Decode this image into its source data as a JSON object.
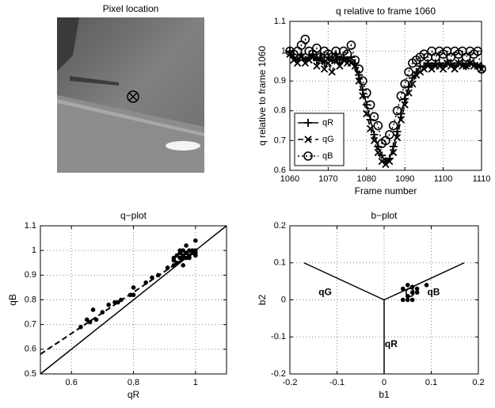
{
  "chart_data": [
    {
      "type": "image",
      "title": "Pixel location"
    },
    {
      "type": "line",
      "title": "q relative to frame 1060",
      "xlabel": "Frame number",
      "ylabel": "q relative to frame 1060",
      "x": [
        1060,
        1061,
        1062,
        1063,
        1064,
        1065,
        1066,
        1067,
        1068,
        1069,
        1070,
        1071,
        1072,
        1073,
        1074,
        1075,
        1076,
        1077,
        1078,
        1079,
        1080,
        1081,
        1082,
        1083,
        1084,
        1085,
        1086,
        1087,
        1088,
        1089,
        1090,
        1091,
        1092,
        1093,
        1094,
        1095,
        1096,
        1097,
        1098,
        1099,
        1100,
        1101,
        1102,
        1103,
        1104,
        1105,
        1106,
        1107,
        1108,
        1109,
        1110
      ],
      "series": [
        {
          "name": "qR",
          "color": "#000000",
          "marker": "+",
          "linestyle": "solid",
          "values": [
            1.0,
            0.98,
            0.97,
            0.99,
            0.97,
            0.98,
            0.99,
            0.97,
            0.98,
            0.96,
            0.98,
            0.97,
            0.99,
            0.97,
            0.98,
            0.97,
            0.98,
            0.96,
            0.92,
            0.87,
            0.82,
            0.77,
            0.72,
            0.68,
            0.65,
            0.63,
            0.64,
            0.68,
            0.73,
            0.79,
            0.84,
            0.88,
            0.91,
            0.93,
            0.95,
            0.95,
            0.96,
            0.95,
            0.96,
            0.96,
            0.95,
            0.96,
            0.96,
            0.95,
            0.96,
            0.96,
            0.95,
            0.96,
            0.96,
            0.95,
            0.95
          ]
        },
        {
          "name": "qG",
          "color": "#000000",
          "marker": "x",
          "linestyle": "dashed",
          "values": [
            0.99,
            0.97,
            0.96,
            0.98,
            0.96,
            0.97,
            0.98,
            0.95,
            0.97,
            0.94,
            0.96,
            0.93,
            0.97,
            0.95,
            0.97,
            0.96,
            0.96,
            0.95,
            0.9,
            0.85,
            0.79,
            0.74,
            0.7,
            0.66,
            0.63,
            0.62,
            0.63,
            0.66,
            0.71,
            0.77,
            0.82,
            0.86,
            0.89,
            0.92,
            0.93,
            0.94,
            0.95,
            0.94,
            0.95,
            0.95,
            0.94,
            0.96,
            0.95,
            0.94,
            0.96,
            0.95,
            0.95,
            0.96,
            0.95,
            0.95,
            0.94
          ]
        },
        {
          "name": "qB",
          "color": "#000000",
          "marker": "o",
          "linestyle": "dotted",
          "values": [
            1.0,
            0.99,
            1.0,
            1.02,
            1.04,
            1.0,
            0.99,
            1.01,
            0.98,
            1.0,
            0.99,
            0.98,
            1.0,
            0.97,
            1.0,
            0.99,
            1.02,
            0.97,
            0.94,
            0.9,
            0.86,
            0.82,
            0.78,
            0.75,
            0.69,
            0.7,
            0.72,
            0.75,
            0.8,
            0.85,
            0.89,
            0.93,
            0.96,
            0.97,
            0.98,
            0.99,
            0.98,
            1.0,
            0.98,
            1.0,
            0.99,
            1.0,
            0.98,
            1.0,
            0.99,
            1.0,
            0.98,
            1.0,
            0.99,
            1.0,
            0.94
          ]
        }
      ],
      "xlim": [
        1060,
        1110
      ],
      "xticks": [
        1060,
        1070,
        1080,
        1090,
        1100,
        1110
      ],
      "ylim": [
        0.6,
        1.1
      ],
      "yticks": [
        0.6,
        0.7,
        0.8,
        0.9,
        1,
        1.1
      ],
      "grid": true,
      "legend": "lower left"
    },
    {
      "type": "scatter",
      "title": "q−plot",
      "xlabel": "qR",
      "ylabel": "qB",
      "series": [
        {
          "color": "#000000",
          "marker": "dot",
          "x": [
            0.63,
            0.65,
            0.66,
            0.67,
            0.68,
            0.7,
            0.72,
            0.74,
            0.75,
            0.76,
            0.79,
            0.8,
            0.8,
            0.84,
            0.86,
            0.88,
            0.91,
            0.93,
            0.93,
            0.94,
            0.94,
            0.95,
            0.95,
            0.95,
            0.96,
            0.96,
            0.96,
            0.97,
            0.97,
            0.97,
            0.98,
            0.98,
            0.98,
            0.99,
            0.99,
            1.0,
            1.0,
            1.0,
            1.0,
            0.96,
            0.93
          ],
          "y": [
            0.69,
            0.72,
            0.71,
            0.76,
            0.72,
            0.75,
            0.78,
            0.79,
            0.79,
            0.8,
            0.82,
            0.85,
            0.82,
            0.87,
            0.89,
            0.9,
            0.93,
            0.97,
            0.96,
            0.95,
            0.98,
            0.97,
            0.99,
            1.0,
            0.98,
            0.97,
            1.0,
            0.97,
            0.99,
            1.02,
            1.0,
            0.97,
            0.98,
            0.99,
            1.0,
            1.0,
            0.99,
            0.98,
            1.04,
            0.94,
            0.94
          ]
        }
      ],
      "lines": [
        {
          "x": [
            0.5,
            1.1
          ],
          "y": [
            0.5,
            1.1
          ],
          "linestyle": "solid"
        },
        {
          "x": [
            0.5,
            0.99
          ],
          "y": [
            0.58,
            0.99
          ],
          "linestyle": "dashed"
        }
      ],
      "xlim": [
        0.5,
        1.1
      ],
      "xticks": [
        0.6,
        0.8,
        1
      ],
      "ylim": [
        0.5,
        1.1
      ],
      "yticks": [
        0.5,
        0.6,
        0.7,
        0.8,
        0.9,
        1,
        1.1
      ],
      "grid": true
    },
    {
      "type": "scatter",
      "title": "b−plot",
      "xlabel": "b1",
      "ylabel": "b2",
      "series": [
        {
          "color": "#000000",
          "marker": "dot",
          "x": [
            0.04,
            0.05,
            0.06,
            0.05,
            0.06,
            0.07,
            0.09,
            0.05,
            0.04,
            0.06,
            0.07
          ],
          "y": [
            0.03,
            0.04,
            0.02,
            0.0,
            0.0,
            0.03,
            0.04,
            0.01,
            0.0,
            0.035,
            0.02
          ]
        },
        {
          "color": "#000000",
          "marker": "o",
          "x": [
            0.055
          ],
          "y": [
            0.02
          ]
        }
      ],
      "lines": [
        {
          "x": [
            0,
            -0.17
          ],
          "y": [
            0,
            0.1
          ],
          "linestyle": "solid"
        },
        {
          "x": [
            0,
            0.17
          ],
          "y": [
            0,
            0.1
          ],
          "linestyle": "solid"
        },
        {
          "x": [
            0,
            0
          ],
          "y": [
            0,
            -0.2
          ],
          "linestyle": "solid"
        }
      ],
      "annotations": [
        "qG",
        "qB",
        "qR"
      ],
      "xlim": [
        -0.2,
        0.2
      ],
      "xticks": [
        -0.2,
        -0.1,
        0,
        0.1,
        0.2
      ],
      "ylim": [
        -0.2,
        0.2
      ],
      "yticks": [
        -0.2,
        -0.1,
        0,
        0.1,
        0.2
      ],
      "grid": true
    }
  ]
}
